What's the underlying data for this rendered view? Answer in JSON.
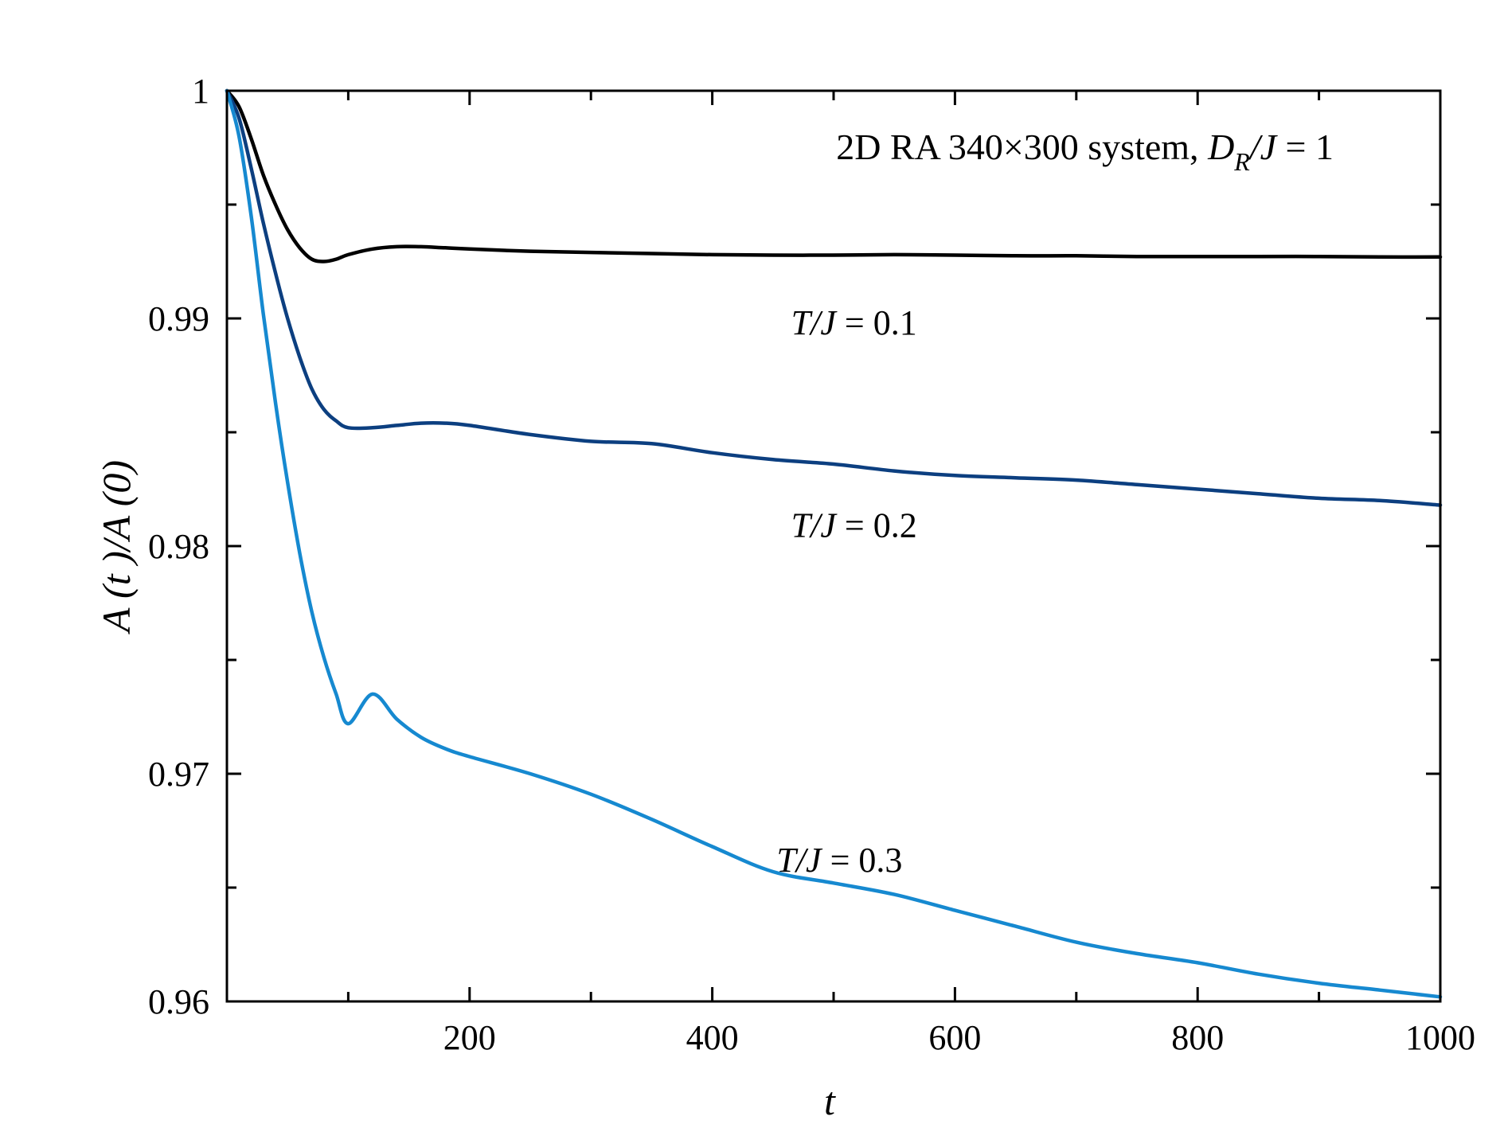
{
  "chart_data": {
    "type": "line",
    "title": "",
    "xlabel": "t",
    "ylabel": "A (t )/A (0)",
    "xlim": [
      0,
      1000
    ],
    "ylim": [
      0.96,
      1
    ],
    "xticks": [
      200,
      400,
      600,
      800,
      1000
    ],
    "xticks_minor": [
      100,
      300,
      500,
      700,
      900
    ],
    "yticks": [
      0.96,
      0.97,
      0.98,
      0.99,
      1
    ],
    "ytick_labels": [
      "0.96",
      "0.97",
      "0.98",
      "0.99",
      "1"
    ],
    "yticks_minor": [
      0.965,
      0.975,
      0.985,
      0.995
    ],
    "grid": false,
    "annotation": {
      "prefix": "2D RA 340×300 system, ",
      "var": "D",
      "sub": "R",
      "mid": "/J",
      "suffix": " = 1"
    },
    "series": [
      {
        "name": "T/J = 0.1",
        "label_var": "T/J",
        "label_value": " = 0.1",
        "label_at": [
          465,
          0.9893
        ],
        "color": "#000000",
        "x": [
          0,
          10,
          20,
          30,
          40,
          50,
          60,
          70,
          80,
          90,
          100,
          120,
          140,
          160,
          180,
          200,
          250,
          300,
          350,
          400,
          450,
          500,
          550,
          600,
          650,
          700,
          750,
          800,
          850,
          900,
          950,
          1000
        ],
        "y": [
          1.0,
          0.9993,
          0.9979,
          0.9963,
          0.995,
          0.9939,
          0.9931,
          0.9926,
          0.9925,
          0.9926,
          0.9928,
          0.99305,
          0.99315,
          0.99315,
          0.9931,
          0.99305,
          0.99295,
          0.9929,
          0.99285,
          0.9928,
          0.99278,
          0.99278,
          0.9928,
          0.99278,
          0.99275,
          0.99275,
          0.99272,
          0.99272,
          0.99272,
          0.99272,
          0.9927,
          0.9927
        ]
      },
      {
        "name": "T/J = 0.2",
        "label_var": "T/J",
        "label_value": " = 0.2",
        "label_at": [
          465,
          0.9804
        ],
        "color": "#0c3f80",
        "x": [
          0,
          10,
          20,
          30,
          40,
          50,
          60,
          70,
          80,
          90,
          100,
          120,
          140,
          160,
          180,
          200,
          250,
          300,
          350,
          400,
          450,
          500,
          550,
          600,
          650,
          700,
          750,
          800,
          850,
          900,
          950,
          1000
        ],
        "y": [
          1.0,
          0.9988,
          0.9966,
          0.9942,
          0.992,
          0.99,
          0.9883,
          0.9869,
          0.986,
          0.9855,
          0.9852,
          0.9852,
          0.9853,
          0.9854,
          0.9854,
          0.9853,
          0.9849,
          0.9846,
          0.9845,
          0.9841,
          0.9838,
          0.9836,
          0.9833,
          0.9831,
          0.983,
          0.9829,
          0.9827,
          0.9825,
          0.9823,
          0.9821,
          0.982,
          0.9818
        ]
      },
      {
        "name": "T/J = 0.3",
        "label_var": "T/J",
        "label_value": " = 0.3",
        "label_at": [
          453,
          0.9657
        ],
        "color": "#1689d0",
        "x": [
          0,
          10,
          20,
          30,
          40,
          50,
          60,
          70,
          80,
          90,
          100,
          120,
          140,
          160,
          180,
          200,
          250,
          300,
          350,
          400,
          450,
          500,
          550,
          600,
          650,
          700,
          750,
          800,
          850,
          900,
          950,
          1000
        ],
        "y": [
          1.0,
          0.998,
          0.9945,
          0.9902,
          0.9863,
          0.9828,
          0.9797,
          0.9771,
          0.9751,
          0.9735,
          0.9722,
          0.9735,
          0.9724,
          0.9716,
          0.9711,
          0.97075,
          0.97,
          0.9691,
          0.968,
          0.9668,
          0.9657,
          0.9652,
          0.9647,
          0.964,
          0.9633,
          0.9626,
          0.9621,
          0.9617,
          0.9612,
          0.9608,
          0.9605,
          0.9602
        ]
      }
    ]
  }
}
